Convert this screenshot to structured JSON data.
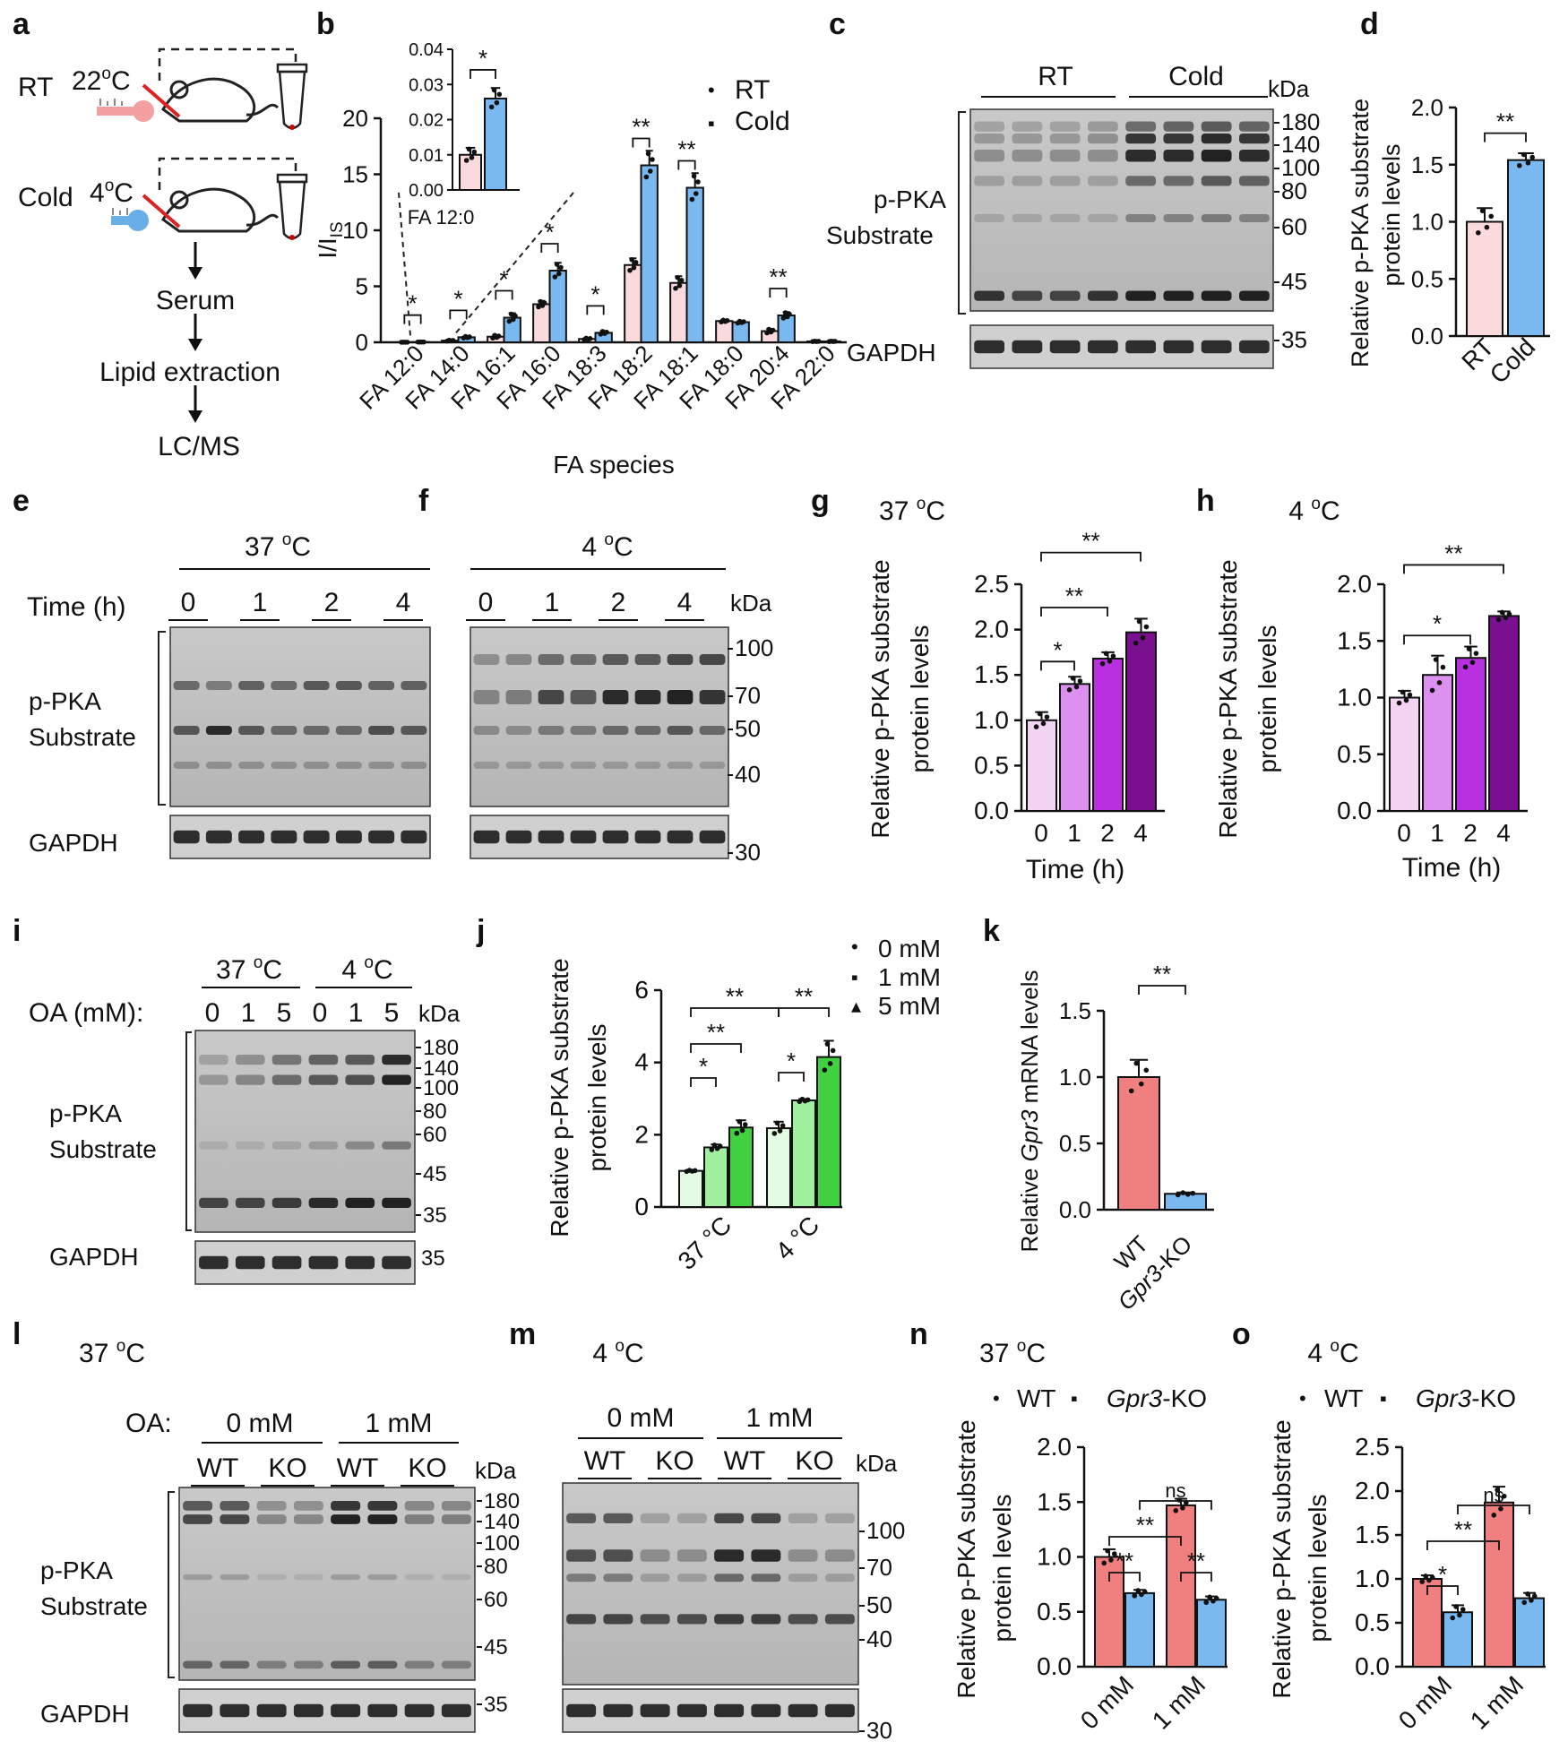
{
  "colors": {
    "rt": "#fadadd",
    "cold": "#7ab8f0",
    "wt": "#f08080",
    "ko": "#7ab8f0",
    "g37": [
      "#f3d5f3",
      "#dc90f0",
      "#b830e0",
      "#7a1090"
    ],
    "g4": [
      "#f3d5f3",
      "#dc90f0",
      "#b830e0",
      "#7a1090"
    ],
    "green": [
      "#e2fbe2",
      "#a0f0a0",
      "#40d040"
    ]
  },
  "panels": {
    "a": {
      "letter": "a",
      "rt_label": "RT",
      "rt_temp": "22",
      "cold_label": "Cold",
      "cold_temp": "4",
      "deg": "o",
      "unit": "C",
      "steps": [
        "Serum",
        "Lipid extraction",
        "LC/MS"
      ]
    },
    "b": {
      "letter": "b",
      "ylabel_main": "I/I",
      "ylabel_sub": "IS",
      "xlabel": "FA species",
      "legend": [
        "RT",
        "Cold"
      ],
      "inset_label": "FA 12:0"
    },
    "c": {
      "letter": "c",
      "groups": [
        "RT",
        "Cold"
      ],
      "kda": "kDa",
      "markers": [
        "180",
        "140",
        "100",
        "80",
        "60",
        "45",
        "35"
      ],
      "blot_label_1": "p-PKA",
      "blot_label_2": "Substrate",
      "loading": "GAPDH"
    },
    "d": {
      "letter": "d",
      "ylabel_1": "Relative p-PKA  substrate",
      "ylabel_2": "protein levels"
    },
    "e": {
      "letter": "e",
      "temp": "37 ",
      "deg": "o",
      "unit": "C",
      "time_label": "Time (h)",
      "times": [
        "0",
        "1",
        "2",
        "4"
      ],
      "blot_label_1": "p-PKA",
      "blot_label_2": "Substrate",
      "loading": "GAPDH"
    },
    "f": {
      "letter": "f",
      "temp": "4 ",
      "deg": "o",
      "unit": "C",
      "times": [
        "0",
        "1",
        "2",
        "4"
      ],
      "kda": "kDa",
      "markers": [
        "100",
        "70",
        "50",
        "40",
        "30"
      ]
    },
    "g": {
      "letter": "g",
      "title": "37 ",
      "deg": "o",
      "unit": "C",
      "ylabel_1": "Relative p-PKA  substrate",
      "ylabel_2": "protein levels",
      "xlabel": "Time (h)"
    },
    "h": {
      "letter": "h",
      "title": "4 ",
      "deg": "o",
      "unit": "C",
      "ylabel_1": "Relative p-PKA  substrate",
      "ylabel_2": "protein levels",
      "xlabel": "Time (h)"
    },
    "i": {
      "letter": "i",
      "temps": [
        "37 ",
        "4 "
      ],
      "deg": "o",
      "unit": "C",
      "oa_label": "OA (mM):",
      "doses": [
        "0",
        "1",
        "5",
        "0",
        "1",
        "5"
      ],
      "kda": "kDa",
      "markers": [
        "180",
        "140",
        "100",
        "80",
        "60",
        "45",
        "35"
      ],
      "blot_label_1": "p-PKA",
      "blot_label_2": "Substrate",
      "loading": "GAPDH",
      "gapdh_marker": "35"
    },
    "j": {
      "letter": "j",
      "ylabel_1": "Relative p-PKA  substrate",
      "ylabel_2": "protein levels",
      "legend": [
        "0 mM",
        "1 mM",
        "5 mM"
      ]
    },
    "k": {
      "letter": "k",
      "ylabel_pre": "Relative ",
      "ylabel_gene": "Gpr3",
      "ylabel_post": " mRNA levels",
      "x_wt": "WT",
      "x_ko_gene": "Gpr3",
      "x_ko_suffix": "-KO"
    },
    "l": {
      "letter": "l",
      "temp": "37 ",
      "deg": "o",
      "unit": "C",
      "oa_label": "OA:",
      "doses": [
        "0 mM",
        "1 mM"
      ],
      "genotypes": [
        "WT",
        "KO",
        "WT",
        "KO"
      ],
      "kda": "kDa",
      "markers": [
        "180",
        "140",
        "100",
        "80",
        "60",
        "45",
        "35"
      ],
      "blot_label_1": "p-PKA",
      "blot_label_2": "Substrate",
      "loading": "GAPDH"
    },
    "m": {
      "letter": "m",
      "temp": "4 ",
      "deg": "o",
      "unit": "C",
      "doses": [
        "0 mM",
        "1 mM"
      ],
      "genotypes": [
        "WT",
        "KO",
        "WT",
        "KO"
      ],
      "kda": "kDa",
      "markers": [
        "100",
        "70",
        "50",
        "40",
        "30"
      ]
    },
    "n": {
      "letter": "n",
      "title": "37 ",
      "deg": "o",
      "unit": "C",
      "legend_wt": "WT",
      "legend_ko_gene": "Gpr3",
      "legend_ko_suffix": "-KO",
      "ylabel_1": "Relative p-PKA  substrate",
      "ylabel_2": "protein levels"
    },
    "o": {
      "letter": "o",
      "title": "4 ",
      "deg": "o",
      "unit": "C",
      "legend_wt": "WT",
      "legend_ko_gene": "Gpr3",
      "legend_ko_suffix": "-KO",
      "ylabel_1": "Relative p-PKA  substrate",
      "ylabel_2": "protein levels"
    }
  },
  "chart_data": [
    {
      "id": "b",
      "type": "bar",
      "categories": [
        "FA 12:0",
        "FA 14:0",
        "FA 16:1",
        "FA 16:0",
        "FA 18:3",
        "FA 18:2",
        "FA 18:1",
        "FA 18:0",
        "FA 20:4",
        "FA 22:0"
      ],
      "series": [
        {
          "name": "RT",
          "values": [
            0.01,
            0.15,
            0.5,
            3.4,
            0.3,
            6.9,
            5.3,
            1.9,
            1.0,
            0.08
          ],
          "errors": [
            0.002,
            0.05,
            0.15,
            0.3,
            0.08,
            0.6,
            0.6,
            0.1,
            0.2,
            0.02
          ]
        },
        {
          "name": "Cold",
          "values": [
            0.026,
            0.45,
            2.2,
            6.4,
            0.85,
            15.8,
            13.8,
            1.8,
            2.4,
            0.08
          ],
          "errors": [
            0.003,
            0.08,
            0.4,
            0.7,
            0.15,
            1.3,
            1.3,
            0.1,
            0.3,
            0.02
          ]
        }
      ],
      "ylim": [
        0,
        20
      ],
      "yticks": [
        "0",
        "5",
        "10",
        "15",
        "20"
      ],
      "significance": [
        "*",
        "*",
        "*",
        "*",
        "*",
        "**",
        "**",
        "",
        "**",
        ""
      ],
      "inset": {
        "categories": [
          "FA 12:0"
        ],
        "ylim": [
          0,
          0.04
        ],
        "yticks": [
          "0.00",
          "0.01",
          "0.02",
          "0.03",
          "0.04"
        ],
        "significance": "*"
      }
    },
    {
      "id": "d",
      "type": "bar",
      "categories": [
        "RT",
        "Cold"
      ],
      "values": [
        1.0,
        1.54
      ],
      "errors": [
        0.12,
        0.06
      ],
      "ylim": [
        0,
        2.0
      ],
      "yticks": [
        "0.0",
        "0.5",
        "1.0",
        "1.5",
        "2.0"
      ],
      "significance": "**"
    },
    {
      "id": "g",
      "type": "bar",
      "categories": [
        "0",
        "1",
        "2",
        "4"
      ],
      "values": [
        1.0,
        1.4,
        1.68,
        1.97
      ],
      "errors": [
        0.09,
        0.08,
        0.07,
        0.15
      ],
      "ylim": [
        0,
        2.5
      ],
      "yticks": [
        "0.0",
        "0.5",
        "1.0",
        "1.5",
        "2.0",
        "2.5"
      ],
      "significance": [
        "*",
        "**",
        "**"
      ]
    },
    {
      "id": "h",
      "type": "bar",
      "categories": [
        "0",
        "1",
        "2",
        "4"
      ],
      "values": [
        1.0,
        1.2,
        1.35,
        1.72
      ],
      "errors": [
        0.06,
        0.17,
        0.1,
        0.04
      ],
      "ylim": [
        0,
        2.0
      ],
      "yticks": [
        "0.0",
        "0.5",
        "1.0",
        "1.5",
        "2.0"
      ],
      "significance": [
        "*",
        "**"
      ]
    },
    {
      "id": "j",
      "type": "bar",
      "categories": [
        "37 °C",
        "4 °C"
      ],
      "series": [
        {
          "name": "0 mM",
          "values": [
            1.0,
            2.18
          ],
          "errors": [
            0.02,
            0.18
          ]
        },
        {
          "name": "1 mM",
          "values": [
            1.65,
            2.95
          ],
          "errors": [
            0.08,
            0.04
          ]
        },
        {
          "name": "5 mM",
          "values": [
            2.2,
            4.15
          ],
          "errors": [
            0.2,
            0.45
          ]
        }
      ],
      "ylim": [
        0,
        6
      ],
      "yticks": [
        "0",
        "2",
        "4",
        "6"
      ],
      "significance": [
        "*",
        "**",
        "**",
        "*",
        "**"
      ]
    },
    {
      "id": "k",
      "type": "bar",
      "categories": [
        "WT",
        "Gpr3-KO"
      ],
      "values": [
        1.0,
        0.12
      ],
      "errors": [
        0.13,
        0.01
      ],
      "ylim": [
        0,
        1.5
      ],
      "yticks": [
        "0.0",
        "0.5",
        "1.0",
        "1.5"
      ],
      "significance": "**"
    },
    {
      "id": "n",
      "type": "bar",
      "categories": [
        "0 mM",
        "1 mM"
      ],
      "series": [
        {
          "name": "WT",
          "values": [
            1.0,
            1.47
          ],
          "errors": [
            0.07,
            0.06
          ]
        },
        {
          "name": "Gpr3-KO",
          "values": [
            0.67,
            0.61
          ],
          "errors": [
            0.03,
            0.03
          ]
        }
      ],
      "ylim": [
        0,
        2.0
      ],
      "yticks": [
        "0.0",
        "0.5",
        "1.0",
        "1.5",
        "2.0"
      ],
      "significance": [
        "**",
        "**",
        "**",
        "ns"
      ]
    },
    {
      "id": "o",
      "type": "bar",
      "categories": [
        "0 mM",
        "1 mM"
      ],
      "series": [
        {
          "name": "WT",
          "values": [
            1.0,
            1.87
          ],
          "errors": [
            0.04,
            0.18
          ]
        },
        {
          "name": "Gpr3-KO",
          "values": [
            0.62,
            0.78
          ],
          "errors": [
            0.08,
            0.06
          ]
        }
      ],
      "ylim": [
        0,
        2.5
      ],
      "yticks": [
        "0.0",
        "0.5",
        "1.0",
        "1.5",
        "2.0",
        "2.5"
      ],
      "significance": [
        "*",
        "**",
        "ns"
      ]
    }
  ]
}
